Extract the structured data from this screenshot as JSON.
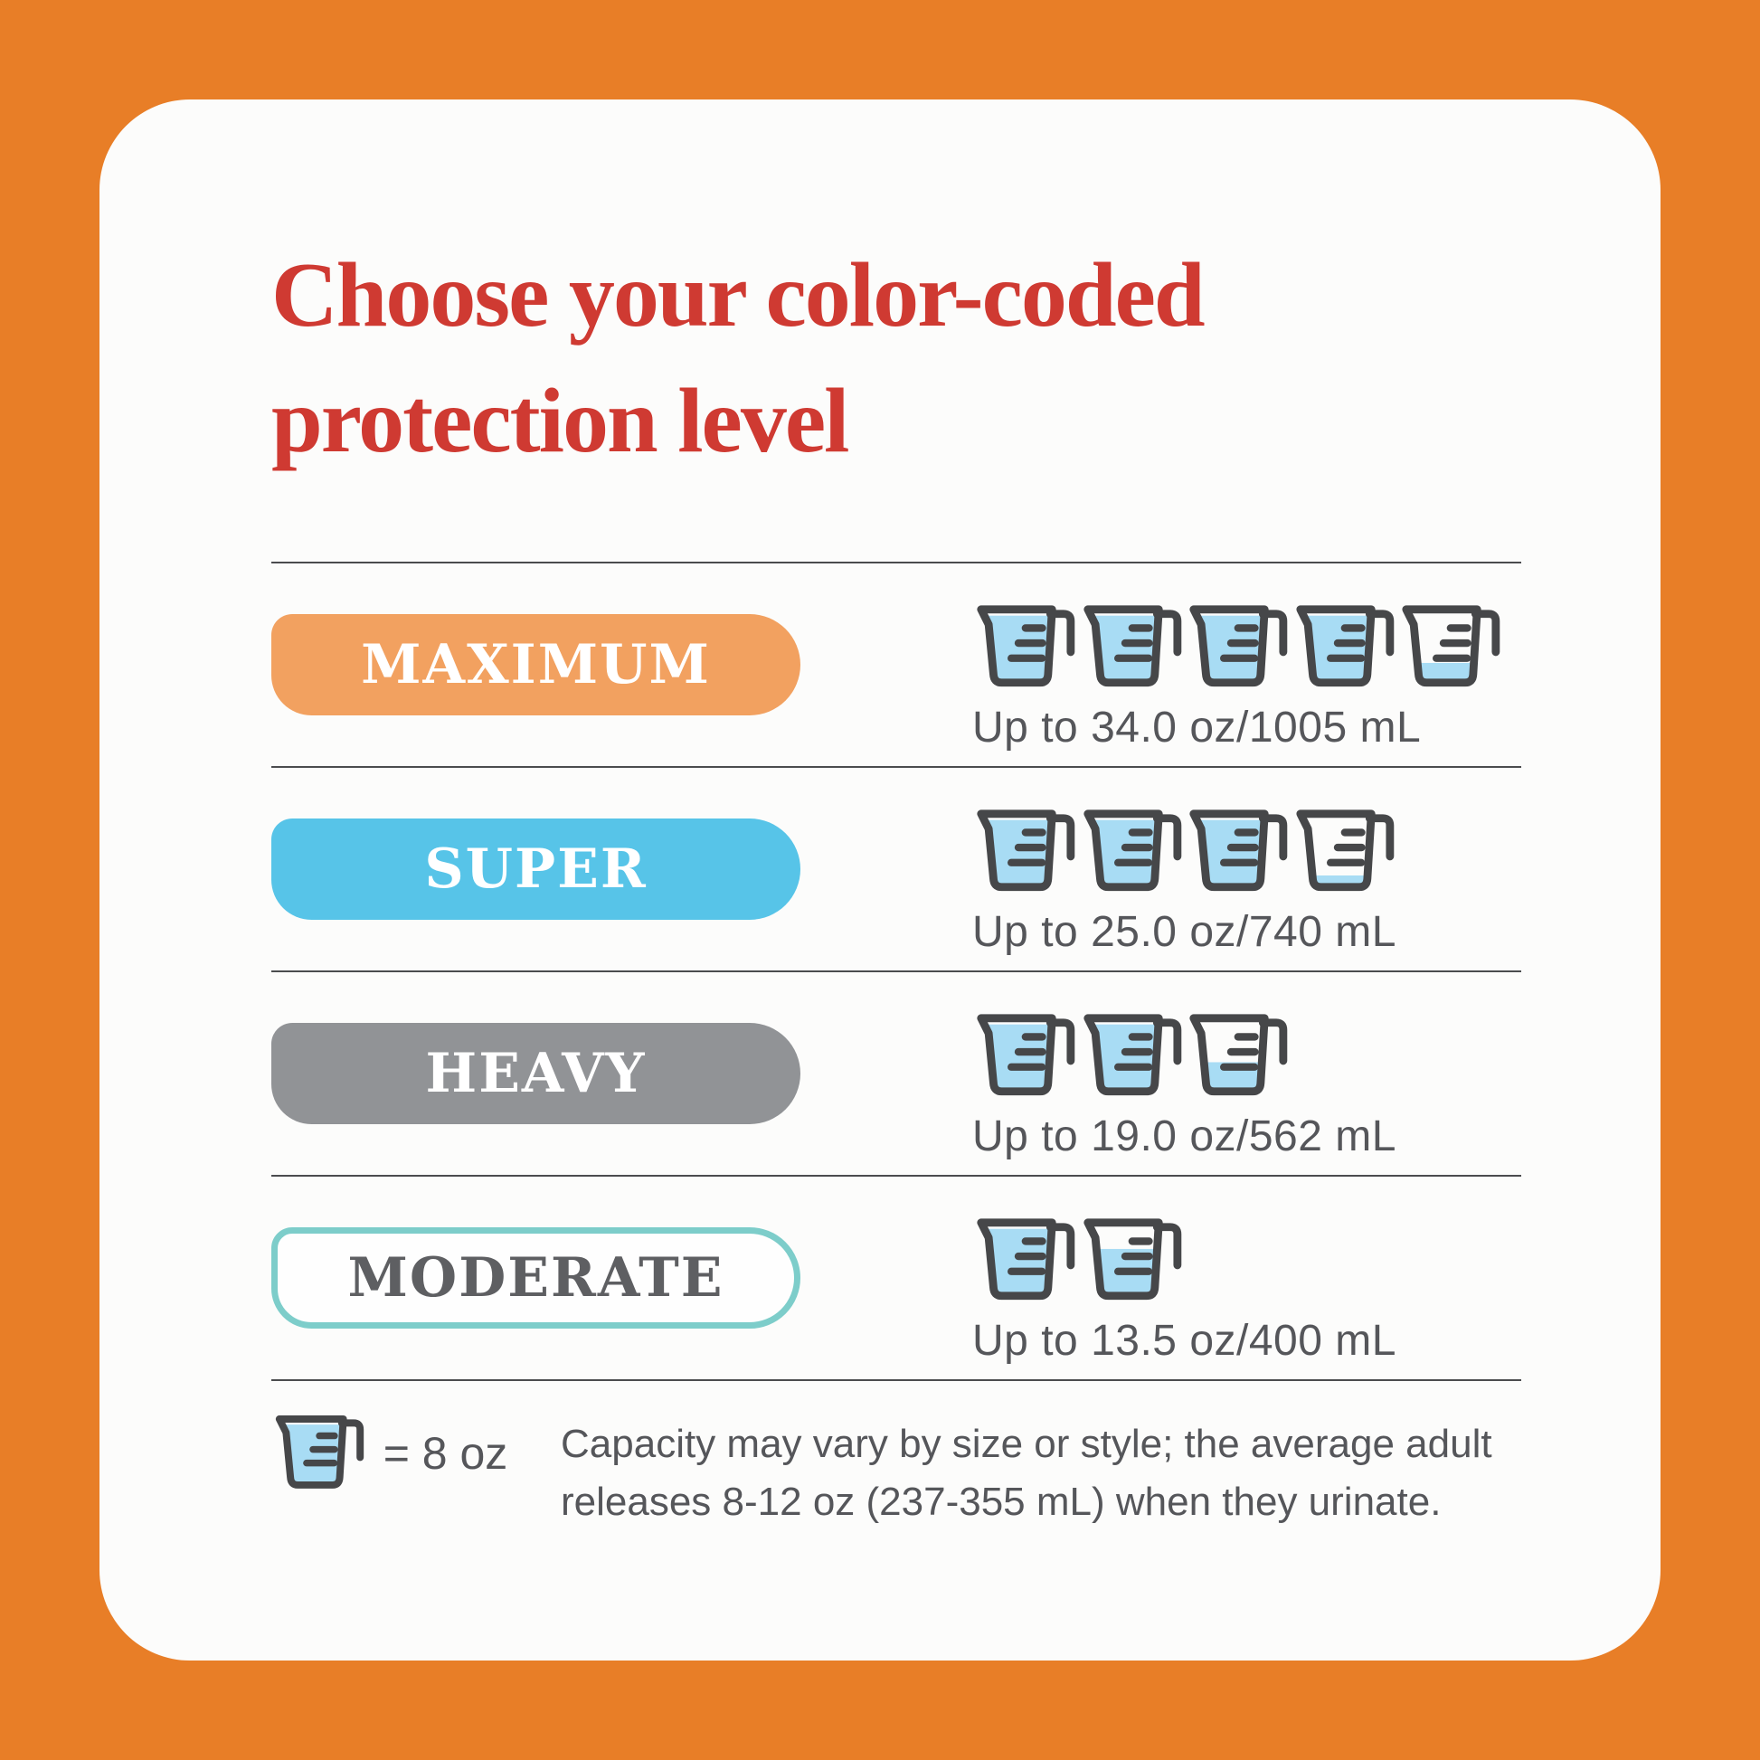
{
  "colors": {
    "frame_orange": "#E87E27",
    "card_background": "#FCFCFB",
    "title_red": "#CF3A32",
    "maximum_orange": "#F2A160",
    "super_blue": "#57C4E8",
    "heavy_gray": "#919396",
    "moderate_teal_border": "#7DCDCA",
    "moderate_label_gray": "#5E5F62",
    "body_text_gray": "#55565A",
    "cup_outline": "#464749",
    "cup_water_blue": "#A8DCF4",
    "divider_gray": "#4B4C4E"
  },
  "title": {
    "line1": "Choose your color-coded",
    "line2": "protection level"
  },
  "rows": [
    {
      "label": "MAXIMUM",
      "caption": "Up to 34.0 oz/1005 mL",
      "capacity_oz": 34.0,
      "capacity_ml": 1005,
      "cups": [
        1,
        1,
        1,
        1,
        0.25
      ],
      "pill_color": "#F2A160",
      "label_color": "#FFFFFF"
    },
    {
      "label": "SUPER",
      "caption": "Up to 25.0 oz/740 mL",
      "capacity_oz": 25.0,
      "capacity_ml": 740,
      "cups": [
        1,
        1,
        1,
        0.12
      ],
      "pill_color": "#57C4E8",
      "label_color": "#FFFFFF"
    },
    {
      "label": "HEAVY",
      "caption": "Up to 19.0 oz/562 mL",
      "capacity_oz": 19.0,
      "capacity_ml": 562,
      "cups": [
        1,
        1,
        0.4
      ],
      "pill_color": "#919396",
      "label_color": "#FFFFFF"
    },
    {
      "label": "MODERATE",
      "caption": "Up to 13.5 oz/400 mL",
      "capacity_oz": 13.5,
      "capacity_ml": 400,
      "cups": [
        1,
        0.68
      ],
      "pill_color": "#FEFEFE",
      "pill_border": "#7DCDCA",
      "label_color": "#5E5F62"
    }
  ],
  "footer": {
    "legend_cup": [
      1
    ],
    "legend_label": "= 8 oz",
    "disclaimer_line1": "Capacity may vary by size or style; the average adult",
    "disclaimer_line2": "releases 8-12 oz (237-355 mL) when they urinate."
  }
}
